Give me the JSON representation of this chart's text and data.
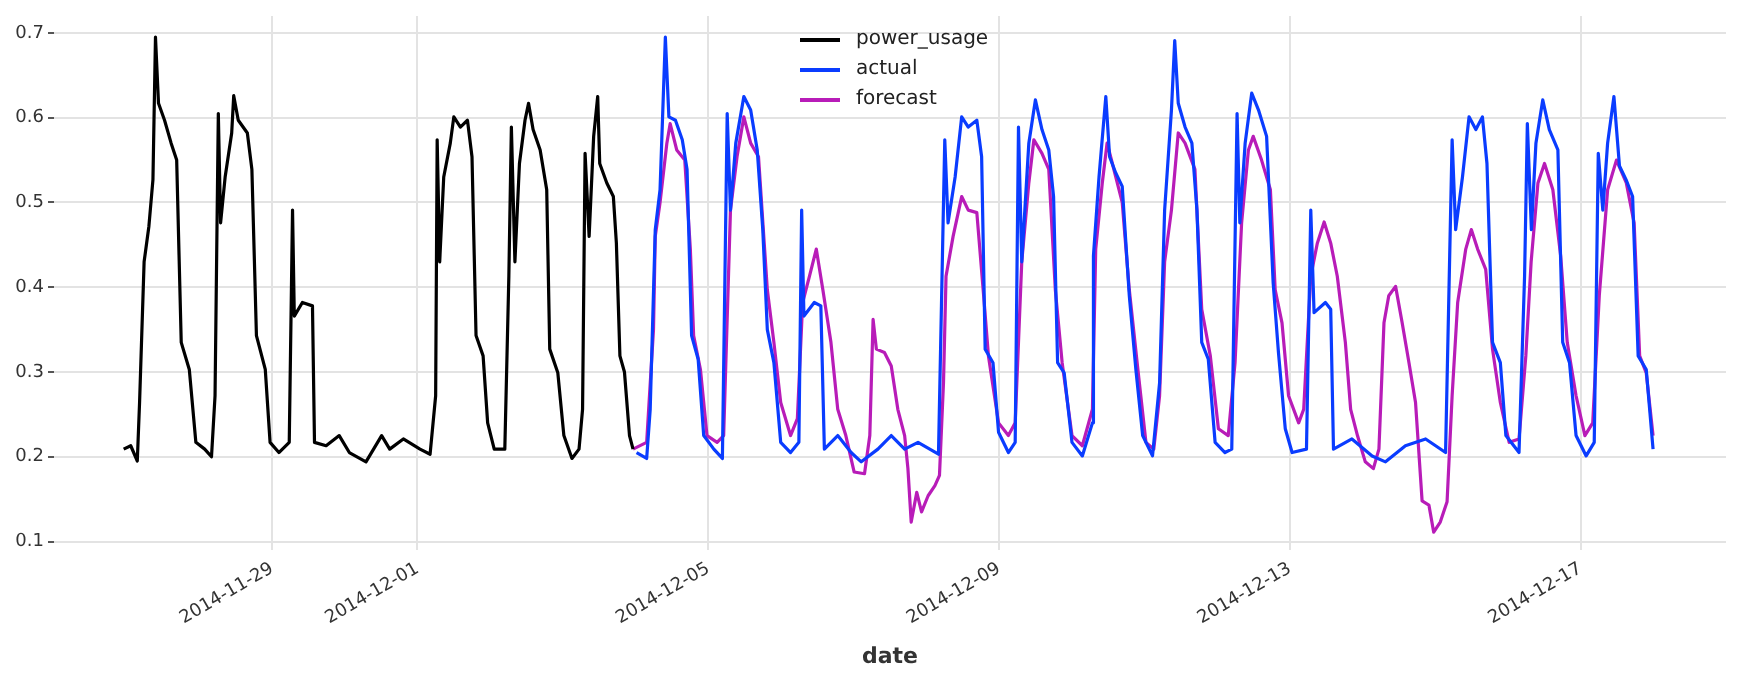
{
  "chart_data": {
    "type": "line",
    "xlabel": "date",
    "xlim": [
      "2014-11-26",
      "2014-12-19"
    ],
    "xticks": [
      "2014-11-29",
      "2014-12-01",
      "2014-12-05",
      "2014-12-09",
      "2014-12-13",
      "2014-12-17"
    ],
    "ylim": [
      0.09,
      0.72
    ],
    "yticks": [
      0.1,
      0.2,
      0.3,
      0.4,
      0.5,
      0.6,
      0.7
    ],
    "grid": true,
    "legend": "top",
    "series": [
      {
        "name": "power_usage",
        "color": "#000000",
        "x": [
          "2014-11-26T23:00",
          "2014-11-27T01:20",
          "2014-11-27T03:30",
          "2014-11-27T04:15",
          "2014-11-27T05:45",
          "2014-11-27T07:20",
          "2014-11-27T08:40",
          "2014-11-27T09:30",
          "2014-11-27T10:30",
          "2014-11-27T12:30",
          "2014-11-27T14:40",
          "2014-11-27T16:30",
          "2014-11-27T18:00",
          "2014-11-27T20:40",
          "2014-11-27T22:50",
          "2014-11-28T01:45",
          "2014-11-28T04:00",
          "2014-11-28T05:10",
          "2014-11-28T06:15",
          "2014-11-28T07:00",
          "2014-11-28T08:30",
          "2014-11-28T10:40",
          "2014-11-28T11:20",
          "2014-11-28T12:50",
          "2014-11-28T15:50",
          "2014-11-28T17:20",
          "2014-11-28T18:50",
          "2014-11-28T21:45",
          "2014-11-28T23:20",
          "2014-11-29T02:15",
          "2014-11-29T05:40",
          "2014-11-29T06:45",
          "2014-11-29T07:20",
          "2014-11-29T10:00",
          "2014-11-29T13:20",
          "2014-11-29T14:00",
          "2014-11-29T17:50",
          "2014-11-29T22:10",
          "2014-11-30T01:30",
          "2014-11-30T07:00",
          "2014-11-30T12:10",
          "2014-11-30T14:50",
          "2014-11-30T19:20",
          "2014-12-01T00:50",
          "2014-12-01T04:10",
          "2014-12-01T06:00",
          "2014-12-01T06:30",
          "2014-12-01T07:20",
          "2014-12-01T08:40",
          "2014-12-01T10:50",
          "2014-12-01T12:00",
          "2014-12-01T14:10",
          "2014-12-01T16:30",
          "2014-12-01T18:00",
          "2014-12-01T19:20",
          "2014-12-01T21:40",
          "2014-12-01T23:10",
          "2014-12-02T01:20",
          "2014-12-02T04:50",
          "2014-12-02T06:10",
          "2014-12-02T07:00",
          "2014-12-02T08:10",
          "2014-12-02T09:40",
          "2014-12-02T11:30",
          "2014-12-02T12:40",
          "2014-12-02T14:10",
          "2014-12-02T16:30",
          "2014-12-02T18:40",
          "2014-12-02T19:40",
          "2014-12-02T22:20",
          "2014-12-03T00:20",
          "2014-12-03T03:00",
          "2014-12-03T05:20",
          "2014-12-03T06:30",
          "2014-12-03T07:20",
          "2014-12-03T08:40",
          "2014-12-03T10:10",
          "2014-12-03T11:30",
          "2014-12-03T12:10",
          "2014-12-03T14:30",
          "2014-12-03T16:40",
          "2014-12-03T17:40",
          "2014-12-03T18:50",
          "2014-12-03T20:20",
          "2014-12-03T22:00",
          "2014-12-03T23:10"
        ],
        "values": [
          0.209,
          0.213,
          0.195,
          0.264,
          0.43,
          0.472,
          0.527,
          0.695,
          0.617,
          0.597,
          0.57,
          0.55,
          0.335,
          0.303,
          0.217,
          0.209,
          0.2,
          0.272,
          0.605,
          0.476,
          0.53,
          0.582,
          0.626,
          0.597,
          0.582,
          0.539,
          0.343,
          0.303,
          0.217,
          0.205,
          0.217,
          0.491,
          0.366,
          0.382,
          0.378,
          0.217,
          0.213,
          0.225,
          0.205,
          0.194,
          0.225,
          0.209,
          0.221,
          0.209,
          0.203,
          0.272,
          0.574,
          0.43,
          0.53,
          0.57,
          0.601,
          0.589,
          0.597,
          0.554,
          0.343,
          0.319,
          0.24,
          0.209,
          0.209,
          0.413,
          0.589,
          0.43,
          0.546,
          0.597,
          0.617,
          0.586,
          0.562,
          0.515,
          0.327,
          0.299,
          0.225,
          0.198,
          0.209,
          0.256,
          0.558,
          0.46,
          0.578,
          0.625,
          0.546,
          0.523,
          0.507,
          0.452,
          0.319,
          0.3,
          0.225,
          0.209
        ]
      },
      {
        "name": "actual",
        "color": "#0a3cff",
        "x": [
          "2014-12-04T00:20",
          "2014-12-04T03:40",
          "2014-12-04T04:50",
          "2014-12-04T06:30",
          "2014-12-04T08:05",
          "2014-12-04T09:50",
          "2014-12-04T11:00",
          "2014-12-04T13:10",
          "2014-12-04T15:25",
          "2014-12-04T17:00",
          "2014-12-04T18:30",
          "2014-12-04T20:40",
          "2014-12-04T22:30",
          "2014-12-05T01:50",
          "2014-12-05T04:40",
          "2014-12-05T06:15",
          "2014-12-05T07:20",
          "2014-12-05T09:05",
          "2014-12-05T11:45",
          "2014-12-05T14:00",
          "2014-12-05T16:10",
          "2014-12-05T18:00",
          "2014-12-05T19:30",
          "2014-12-05T21:40",
          "2014-12-05T23:55",
          "2014-12-06T03:10",
          "2014-12-06T05:55",
          "2014-12-06T06:50",
          "2014-12-06T07:35",
          "2014-12-06T11:00",
          "2014-12-06T13:10",
          "2014-12-06T14:20",
          "2014-12-06T18:45",
          "2014-12-06T23:10",
          "2014-12-07T02:30",
          "2014-12-07T08:00",
          "2014-12-07T12:25",
          "2014-12-07T16:50",
          "2014-12-07T21:15",
          "2014-12-08T04:00",
          "2014-12-08T06:05",
          "2014-12-08T07:10",
          "2014-12-08T09:30",
          "2014-12-08T11:40",
          "2014-12-08T13:50",
          "2014-12-08T16:40",
          "2014-12-08T18:15",
          "2014-12-08T19:25",
          "2014-12-08T22:00",
          "2014-12-08T23:50",
          "2014-12-09T03:05",
          "2014-12-09T05:20",
          "2014-12-09T06:25",
          "2014-12-09T07:30",
          "2014-12-09T09:50",
          "2014-12-09T12:00",
          "2014-12-09T14:10",
          "2014-12-09T16:25",
          "2014-12-09T18:00",
          "2014-12-09T19:20",
          "2014-12-09T21:30",
          "2014-12-10T00:05",
          "2014-12-10T03:30",
          "2014-12-10T06:50",
          "2014-12-10T07:10",
          "2014-12-10T09:00",
          "2014-12-10T11:15",
          "2014-12-10T12:30",
          "2014-12-10T14:30",
          "2014-12-10T16:40",
          "2014-12-10T19:00",
          "2014-12-10T21:10",
          "2014-12-10T23:25",
          "2014-12-11T02:40",
          "2014-12-11T05:00",
          "2014-12-11T06:40",
          "2014-12-11T08:55",
          "2014-12-11T10:00",
          "2014-12-11T11:10",
          "2014-12-11T13:25",
          "2014-12-11T15:40",
          "2014-12-11T17:20",
          "2014-12-11T18:55",
          "2014-12-11T21:05",
          "2014-12-11T23:20",
          "2014-12-12T02:35",
          "2014-12-12T04:50",
          "2014-12-12T06:35",
          "2014-12-12T07:30",
          "2014-12-12T09:15",
          "2014-12-12T11:25",
          "2014-12-12T13:40",
          "2014-12-12T16:20",
          "2014-12-12T18:30",
          "2014-12-12T20:15",
          "2014-12-12T22:30",
          "2014-12-13T00:45",
          "2014-12-13T05:30",
          "2014-12-13T06:55",
          "2014-12-13T08:00",
          "2014-12-13T11:45",
          "2014-12-13T13:30",
          "2014-12-13T14:25",
          "2014-12-13T20:30",
          "2014-12-14T03:10",
          "2014-12-14T07:35",
          "2014-12-14T14:10",
          "2014-12-14T20:50",
          "2014-12-15T03:25",
          "2014-12-15T05:35",
          "2014-12-15T06:45",
          "2014-12-15T09:00",
          "2014-12-15T11:10",
          "2014-12-15T13:25",
          "2014-12-15T15:35",
          "2014-12-15T17:05",
          "2014-12-15T18:55",
          "2014-12-15T21:30",
          "2014-12-15T23:20",
          "2014-12-16T03:40",
          "2014-12-16T05:30",
          "2014-12-16T06:25",
          "2014-12-16T07:45",
          "2014-12-16T09:15",
          "2014-12-16T11:30",
          "2014-12-16T13:40",
          "2014-12-16T16:30",
          "2014-12-16T18:05",
          "2014-12-16T20:20",
          "2014-12-16T22:30",
          "2014-12-17T01:50",
          "2014-12-17T04:30",
          "2014-12-17T05:50",
          "2014-12-17T07:20",
          "2014-12-17T08:55",
          "2014-12-17T11:00",
          "2014-12-17T12:50",
          "2014-12-17T15:00",
          "2014-12-17T17:10",
          "2014-12-17T19:00",
          "2014-12-17T21:40",
          "2014-12-17T23:55"
        ],
        "values": [
          0.205,
          0.198,
          0.256,
          0.468,
          0.515,
          0.695,
          0.601,
          0.597,
          0.574,
          0.539,
          0.343,
          0.315,
          0.225,
          0.209,
          0.198,
          0.605,
          0.491,
          0.57,
          0.625,
          0.609,
          0.562,
          0.468,
          0.35,
          0.311,
          0.217,
          0.205,
          0.217,
          0.491,
          0.366,
          0.382,
          0.378,
          0.209,
          0.225,
          0.205,
          0.194,
          0.209,
          0.225,
          0.209,
          0.217,
          0.203,
          0.574,
          0.476,
          0.53,
          0.601,
          0.589,
          0.597,
          0.554,
          0.327,
          0.311,
          0.229,
          0.205,
          0.217,
          0.589,
          0.43,
          0.57,
          0.621,
          0.586,
          0.562,
          0.507,
          0.311,
          0.299,
          0.217,
          0.201,
          0.24,
          0.437,
          0.53,
          0.625,
          0.554,
          0.535,
          0.519,
          0.39,
          0.303,
          0.225,
          0.201,
          0.287,
          0.491,
          0.609,
          0.691,
          0.617,
          0.589,
          0.57,
          0.491,
          0.335,
          0.315,
          0.217,
          0.205,
          0.209,
          0.605,
          0.476,
          0.57,
          0.629,
          0.609,
          0.578,
          0.405,
          0.323,
          0.233,
          0.205,
          0.209,
          0.491,
          0.37,
          0.382,
          0.374,
          0.209,
          0.221,
          0.201,
          0.194,
          0.213,
          0.221,
          0.205,
          0.574,
          0.468,
          0.53,
          0.601,
          0.586,
          0.601,
          0.546,
          0.335,
          0.311,
          0.225,
          0.205,
          0.413,
          0.593,
          0.468,
          0.57,
          0.621,
          0.586,
          0.562,
          0.335,
          0.311,
          0.225,
          0.201,
          0.217,
          0.558,
          0.491,
          0.57,
          0.625,
          0.543,
          0.527,
          0.507,
          0.319,
          0.303,
          0.209
        ]
      },
      {
        "name": "forecast",
        "color": "#b81cb8",
        "x": [
          "2014-12-03T23:10",
          "2014-12-04T03:40",
          "2014-12-04T05:55",
          "2014-12-04T06:30",
          "2014-12-04T08:05",
          "2014-12-04T10:20",
          "2014-12-04T11:25",
          "2014-12-04T13:35",
          "2014-12-04T16:15",
          "2014-12-04T18:05",
          "2014-12-04T19:10",
          "2014-12-04T21:25",
          "2014-12-04T23:35",
          "2014-12-05T02:55",
          "2014-12-05T05:05",
          "2014-12-05T07:20",
          "2014-12-05T09:30",
          "2014-12-05T11:45",
          "2014-12-05T14:00",
          "2014-12-05T16:35",
          "2014-12-05T19:30",
          "2014-12-05T21:40",
          "2014-12-05T23:55",
          "2014-12-06T03:10",
          "2014-12-06T05:25",
          "2014-12-06T07:10",
          "2014-12-06T09:25",
          "2014-12-06T11:40",
          "2014-12-06T13:50",
          "2014-12-06T16:30",
          "2014-12-06T18:45",
          "2014-12-06T21:25",
          "2014-12-07T00:10",
          "2014-12-07T03:35",
          "2014-12-07T05:20",
          "2014-12-07T06:25",
          "2014-12-07T07:30",
          "2014-12-07T10:10",
          "2014-12-07T12:25",
          "2014-12-07T14:35",
          "2014-12-07T16:50",
          "2014-12-07T17:55",
          "2014-12-07T19:00",
          "2014-12-07T20:50",
          "2014-12-07T22:25",
          "2014-12-08T00:35",
          "2014-12-08T02:50",
          "2014-12-08T04:20",
          "2014-12-08T05:40",
          "2014-12-08T06:30",
          "2014-12-08T08:50",
          "2014-12-08T11:40",
          "2014-12-08T13:50",
          "2014-12-08T16:40",
          "2014-12-08T18:55",
          "2014-12-08T20:30",
          "2014-12-08T23:50",
          "2014-12-09T03:05",
          "2014-12-09T05:20",
          "2014-12-09T07:30",
          "2014-12-09T09:50",
          "2014-12-09T11:30",
          "2014-12-09T14:10",
          "2014-12-09T16:25",
          "2014-12-09T18:35",
          "2014-12-09T20:50",
          "2014-12-10T00:05",
          "2014-12-10T03:30",
          "2014-12-10T06:50",
          "2014-12-10T07:55",
          "2014-12-10T10:05",
          "2014-12-10T11:40",
          "2014-12-10T13:25",
          "2014-12-10T16:40",
          "2014-12-10T19:00",
          "2014-12-10T21:50",
          "2014-12-11T00:30",
          "2014-12-11T03:05",
          "2014-12-11T05:00",
          "2014-12-11T06:40",
          "2014-12-11T08:55",
          "2014-12-11T11:10",
          "2014-12-11T13:25",
          "2014-12-11T16:40",
          "2014-12-11T18:55",
          "2014-12-11T21:45",
          "2014-12-12T00:25",
          "2014-12-12T03:40",
          "2014-12-12T05:55",
          "2014-12-12T08:05",
          "2014-12-12T10:20",
          "2014-12-12T11:55",
          "2014-12-12T14:40",
          "2014-12-12T17:35",
          "2014-12-12T19:10",
          "2014-12-12T21:25",
          "2014-12-12T23:35",
          "2014-12-13T02:55",
          "2014-12-13T04:35",
          "2014-12-13T06:55",
          "2014-12-13T09:05",
          "2014-12-13T11:20",
          "2014-12-13T13:30",
          "2014-12-13T15:40",
          "2014-12-13T18:20",
          "2014-12-13T20:05",
          "2014-12-13T22:20",
          "2014-12-14T00:55",
          "2014-12-14T03:35",
          "2014-12-14T05:25",
          "2014-12-14T07:05",
          "2014-12-14T08:40",
          "2014-12-14T10:55",
          "2014-12-14T13:05",
          "2014-12-14T15:20",
          "2014-12-14T17:30",
          "2014-12-14T19:40",
          "2014-12-14T21:55",
          "2014-12-14T23:30",
          "2014-12-15T01:40",
          "2014-12-15T03:55",
          "2014-12-15T05:35",
          "2014-12-15T07:25",
          "2014-12-15T10:05",
          "2014-12-15T11:55",
          "2014-12-15T14:00",
          "2014-12-15T16:40",
          "2014-12-15T18:55",
          "2014-12-15T21:30",
          "2014-12-16T00:25",
          "2014-12-16T03:40",
          "2014-12-16T05:55",
          "2014-12-16T07:40",
          "2014-12-16T09:55",
          "2014-12-16T12:05",
          "2014-12-16T14:50",
          "2014-12-16T17:25",
          "2014-12-16T19:35",
          "2014-12-16T22:30",
          "2014-12-17T01:25",
          "2014-12-17T04:00",
          "2014-12-17T06:10",
          "2014-12-17T08:55",
          "2014-12-17T11:50",
          "2014-12-17T15:05",
          "2014-12-17T17:40",
          "2014-12-17T19:30",
          "2014-12-17T21:40",
          "2014-12-17T23:55"
        ],
        "values": [
          0.209,
          0.217,
          0.35,
          0.46,
          0.5,
          0.57,
          0.593,
          0.562,
          0.55,
          0.445,
          0.343,
          0.303,
          0.225,
          0.217,
          0.225,
          0.491,
          0.554,
          0.601,
          0.57,
          0.554,
          0.397,
          0.335,
          0.264,
          0.225,
          0.245,
          0.382,
          0.413,
          0.445,
          0.397,
          0.335,
          0.256,
          0.225,
          0.182,
          0.18,
          0.225,
          0.362,
          0.327,
          0.323,
          0.307,
          0.256,
          0.225,
          0.186,
          0.123,
          0.158,
          0.135,
          0.154,
          0.166,
          0.178,
          0.288,
          0.413,
          0.46,
          0.507,
          0.491,
          0.488,
          0.39,
          0.319,
          0.24,
          0.225,
          0.24,
          0.43,
          0.523,
          0.574,
          0.558,
          0.539,
          0.397,
          0.311,
          0.225,
          0.213,
          0.256,
          0.445,
          0.523,
          0.57,
          0.546,
          0.5,
          0.397,
          0.303,
          0.217,
          0.209,
          0.272,
          0.43,
          0.491,
          0.582,
          0.57,
          0.539,
          0.374,
          0.319,
          0.233,
          0.225,
          0.311,
          0.476,
          0.562,
          0.578,
          0.55,
          0.515,
          0.397,
          0.358,
          0.272,
          0.24,
          0.256,
          0.413,
          0.452,
          0.477,
          0.452,
          0.413,
          0.335,
          0.256,
          0.225,
          0.194,
          0.186,
          0.209,
          0.358,
          0.39,
          0.401,
          0.358,
          0.311,
          0.264,
          0.148,
          0.143,
          0.111,
          0.123,
          0.147,
          0.272,
          0.382,
          0.445,
          0.468,
          0.445,
          0.421,
          0.327,
          0.264,
          0.217,
          0.221,
          0.319,
          0.43,
          0.523,
          0.546,
          0.515,
          0.437,
          0.335,
          0.272,
          0.225,
          0.24,
          0.39,
          0.515,
          0.55,
          0.523,
          0.476,
          0.319,
          0.299,
          0.225
        ]
      }
    ]
  }
}
